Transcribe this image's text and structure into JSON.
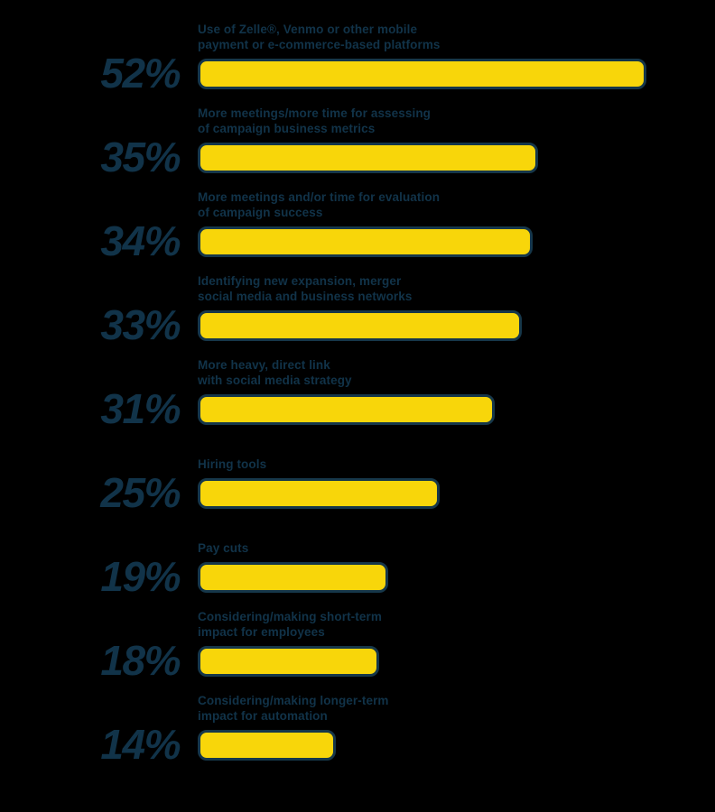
{
  "chart_data": {
    "type": "bar",
    "orientation": "horizontal",
    "unit": "%",
    "title": "",
    "xlabel": "",
    "ylabel": "",
    "xlim": [
      0,
      55
    ],
    "grid": false,
    "legend": "none",
    "bar_fill_color": "#F8D60A",
    "bar_border_color": "#16374A",
    "text_color": "#113349",
    "background_color": "#000000",
    "categories": [
      "Use of Zelle®, Venmo or other mobile payment or e-commerce-based platforms",
      "More meetings/more time for assessing of campaign business metrics",
      "More meetings and/or time for evaluation of campaign success",
      "Identifying new expansion, merger social media and business networks",
      "More heavy, direct link with social media strategy",
      "Hiring tools",
      "Pay cuts",
      "Considering/making short-term impact for employees",
      "Considering/making longer-term impact for automation"
    ],
    "values": [
      52,
      35,
      34,
      33,
      31,
      25,
      19,
      18,
      14
    ]
  },
  "rows": [
    {
      "pct": "52%",
      "value": 52,
      "lines": [
        "Use of Zelle®, Venmo or other mobile",
        "payment or e-commerce-based platforms"
      ]
    },
    {
      "pct": "35%",
      "value": 35,
      "lines": [
        "More meetings/more time for assessing",
        "of campaign business metrics"
      ]
    },
    {
      "pct": "34%",
      "value": 34,
      "lines": [
        "More meetings and/or time for evaluation",
        "of campaign success"
      ]
    },
    {
      "pct": "33%",
      "value": 33,
      "lines": [
        "Identifying new expansion, merger",
        "social media and business networks"
      ]
    },
    {
      "pct": "31%",
      "value": 31,
      "lines": [
        "More heavy, direct link",
        "with social media strategy"
      ]
    },
    {
      "pct": "25%",
      "value": 25,
      "lines": [
        "Hiring tools"
      ]
    },
    {
      "pct": "19%",
      "value": 19,
      "lines": [
        "Pay cuts"
      ]
    },
    {
      "pct": "18%",
      "value": 18,
      "lines": [
        "Considering/making short-term",
        "impact for employees"
      ]
    },
    {
      "pct": "14%",
      "value": 14,
      "lines": [
        "Considering/making longer-term",
        "impact for automation"
      ]
    }
  ]
}
